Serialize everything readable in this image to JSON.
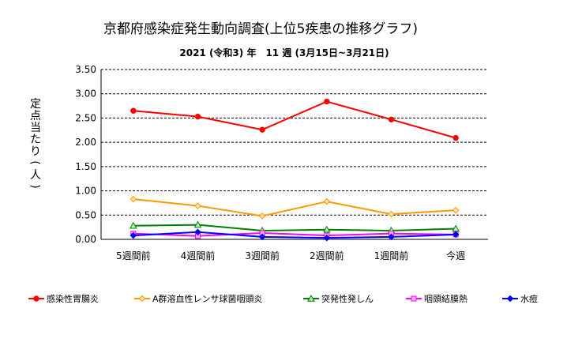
{
  "chart_data": {
    "type": "line",
    "title": "京都府感染症発生動向調査(上位5疾患の推移グラフ)",
    "subtitle": "2021 (令和3) 年　11 週 (3月15日~3月21日)",
    "ylabel": "定点当たり(人)",
    "xlabel": "",
    "categories": [
      "5週間前",
      "4週間前",
      "3週間前",
      "2週間前",
      "1週間前",
      "今週"
    ],
    "ylim": [
      0,
      3.5
    ],
    "yticks": [
      "0.00",
      "0.50",
      "1.00",
      "1.50",
      "2.00",
      "2.50",
      "3.00",
      "3.50"
    ],
    "grid": "horizontal-dashed",
    "legend": "bottom",
    "series": [
      {
        "name": "感染性胃腸炎",
        "color": "#ff0000",
        "marker": "circle",
        "values": [
          2.65,
          2.53,
          2.26,
          2.84,
          2.47,
          2.09
        ]
      },
      {
        "name": "A群溶血性レンサ球菌咽頭炎",
        "color": "#ff9900",
        "marker": "diamond",
        "values": [
          0.83,
          0.69,
          0.48,
          0.78,
          0.52,
          0.6
        ]
      },
      {
        "name": "突発性発しん",
        "color": "#008000",
        "marker": "triangle",
        "values": [
          0.28,
          0.3,
          0.18,
          0.2,
          0.18,
          0.22
        ]
      },
      {
        "name": "咽頭結膜熱",
        "color": "#ff00ff",
        "marker": "square",
        "values": [
          0.12,
          0.07,
          0.13,
          0.08,
          0.12,
          0.1
        ]
      },
      {
        "name": "水痘",
        "color": "#0000ff",
        "marker": "diamond",
        "values": [
          0.08,
          0.15,
          0.05,
          0.03,
          0.05,
          0.1
        ]
      }
    ]
  }
}
